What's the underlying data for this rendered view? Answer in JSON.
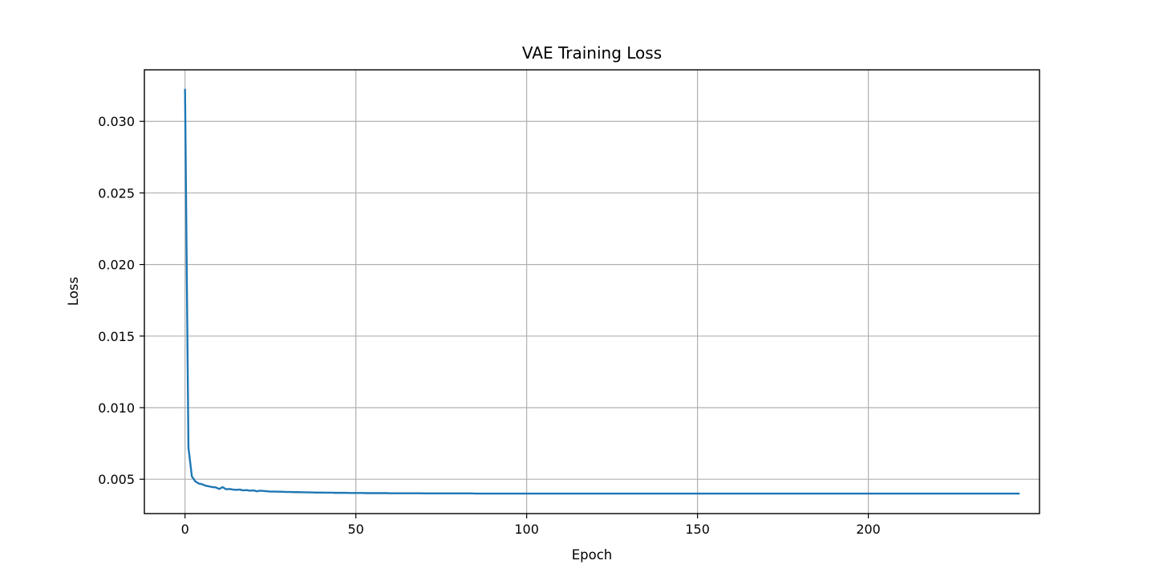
{
  "chart_data": {
    "type": "line",
    "title": "VAE Training Loss",
    "xlabel": "Epoch",
    "ylabel": "Loss",
    "xlim": [
      -11.9,
      250.1
    ],
    "ylim": [
      0.0026,
      0.0336
    ],
    "xticks": [
      0,
      50,
      100,
      150,
      200
    ],
    "xtick_labels": [
      "0",
      "50",
      "100",
      "150",
      "200"
    ],
    "yticks": [
      0.005,
      0.01,
      0.015,
      0.02,
      0.025,
      0.03
    ],
    "ytick_labels": [
      "0.005",
      "0.010",
      "0.015",
      "0.020",
      "0.025",
      "0.030"
    ],
    "grid": true,
    "colors": {
      "line": "#1f77b4",
      "grid": "#b0b0b0",
      "frame": "#000000"
    },
    "series": [
      {
        "values": [
          0.0322,
          0.0072,
          0.0052,
          0.00485,
          0.0047,
          0.00465,
          0.00455,
          0.0045,
          0.00445,
          0.00443,
          0.00432,
          0.00445,
          0.0043,
          0.00432,
          0.00428,
          0.00426,
          0.00428,
          0.00422,
          0.00424,
          0.0042,
          0.00422,
          0.00416,
          0.0042,
          0.00418,
          0.00416,
          0.00414,
          0.00414,
          0.00413,
          0.00413,
          0.00412,
          0.00411,
          0.00411,
          0.0041,
          0.0041,
          0.00409,
          0.00409,
          0.00408,
          0.00408,
          0.00407,
          0.00407,
          0.00407,
          0.00406,
          0.00406,
          0.00406,
          0.00405,
          0.00405,
          0.00405,
          0.00405,
          0.00404,
          0.00404,
          0.00404,
          0.00404,
          0.00404,
          0.00403,
          0.00403,
          0.00403,
          0.00403,
          0.00403,
          0.00403,
          0.00403,
          0.00402,
          0.00402,
          0.00402,
          0.00402,
          0.00402,
          0.00402,
          0.00402,
          0.00402,
          0.00402,
          0.00402,
          0.00401,
          0.00401,
          0.00401,
          0.00401,
          0.00401,
          0.00401,
          0.00401,
          0.00401,
          0.00401,
          0.00401,
          0.00401,
          0.00401,
          0.00401,
          0.00401,
          0.00401,
          0.004,
          0.004,
          0.004,
          0.004,
          0.004,
          0.004,
          0.004,
          0.004,
          0.004,
          0.004,
          0.004,
          0.004,
          0.004,
          0.004,
          0.004,
          0.004,
          0.004,
          0.004,
          0.004,
          0.004,
          0.004,
          0.004,
          0.004,
          0.004,
          0.004,
          0.004,
          0.004,
          0.004,
          0.004,
          0.004,
          0.004,
          0.004,
          0.004,
          0.004,
          0.004,
          0.004,
          0.004,
          0.004,
          0.004,
          0.004,
          0.004,
          0.004,
          0.004,
          0.004,
          0.004,
          0.004,
          0.004,
          0.004,
          0.004,
          0.004,
          0.004,
          0.004,
          0.004,
          0.004,
          0.004,
          0.004,
          0.004,
          0.004,
          0.004,
          0.004,
          0.004,
          0.004,
          0.004,
          0.004,
          0.004,
          0.004,
          0.004,
          0.004,
          0.004,
          0.004,
          0.004,
          0.004,
          0.004,
          0.004,
          0.004,
          0.004,
          0.004,
          0.004,
          0.004,
          0.004,
          0.004,
          0.004,
          0.004,
          0.004,
          0.004,
          0.004,
          0.004,
          0.004,
          0.004,
          0.004,
          0.004,
          0.004,
          0.004,
          0.004,
          0.004,
          0.004,
          0.004,
          0.004,
          0.004,
          0.004,
          0.004,
          0.004,
          0.004,
          0.004,
          0.004,
          0.004,
          0.004,
          0.004,
          0.004,
          0.004,
          0.004,
          0.004,
          0.004,
          0.004,
          0.004,
          0.004,
          0.004,
          0.004,
          0.004,
          0.004,
          0.004,
          0.004,
          0.004,
          0.004,
          0.004,
          0.004,
          0.004,
          0.004,
          0.004,
          0.004,
          0.004,
          0.004,
          0.004,
          0.004,
          0.004,
          0.004,
          0.004,
          0.004,
          0.004,
          0.004,
          0.004,
          0.004,
          0.004,
          0.004,
          0.004,
          0.004,
          0.004,
          0.004,
          0.004,
          0.004,
          0.004,
          0.004,
          0.004,
          0.004,
          0.004,
          0.004,
          0.004,
          0.004,
          0.004,
          0.004
        ]
      }
    ]
  }
}
